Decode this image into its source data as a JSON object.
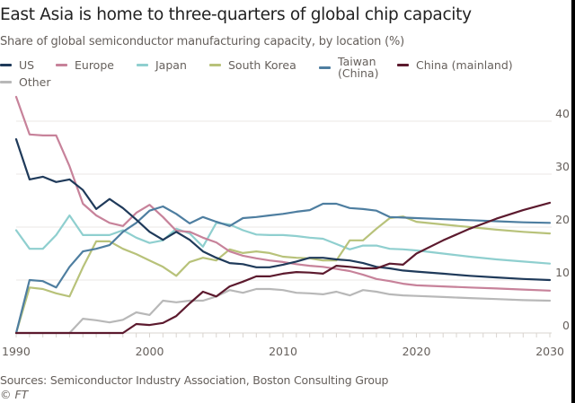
{
  "chart_data": {
    "type": "line",
    "title": "East Asia is home to three-quarters of global chip capacity",
    "subtitle": "Share of global semiconductor manufacturing capacity, by location (%)",
    "xlabel": "",
    "ylabel": "",
    "xlim": [
      1990,
      2030
    ],
    "ylim": [
      0,
      40
    ],
    "x_ticks": [
      1990,
      2000,
      2010,
      2020,
      2030
    ],
    "y_ticks": [
      0,
      10,
      20,
      30,
      40
    ],
    "y_axis_side": "right",
    "grid": "horizontal",
    "legend_position": "top",
    "x": [
      1990,
      1991,
      1992,
      1993,
      1994,
      1995,
      1996,
      1997,
      1998,
      1999,
      2000,
      2001,
      2002,
      2003,
      2004,
      2005,
      2006,
      2007,
      2008,
      2009,
      2010,
      2011,
      2012,
      2013,
      2014,
      2015,
      2016,
      2017,
      2018,
      2019,
      2020,
      2022,
      2024,
      2026,
      2028,
      2030
    ],
    "series": [
      {
        "name": "US",
        "color": "#1f3a5a",
        "values": [
          36.6,
          29.0,
          29.5,
          28.5,
          29.0,
          27.0,
          23.4,
          25.3,
          23.6,
          21.4,
          19.1,
          17.6,
          19.1,
          17.6,
          15.4,
          14.2,
          13.2,
          13.0,
          12.4,
          12.4,
          12.9,
          13.5,
          14.2,
          14.2,
          13.9,
          13.7,
          13.2,
          12.5,
          12.2,
          11.8,
          11.6,
          11.2,
          10.8,
          10.5,
          10.2,
          10.0
        ]
      },
      {
        "name": "Europe",
        "color": "#c7829a",
        "values": [
          44.6,
          37.5,
          37.3,
          37.3,
          31.5,
          24.4,
          22.2,
          20.8,
          20.2,
          22.7,
          24.2,
          21.9,
          19.3,
          19.1,
          18.0,
          17.1,
          15.4,
          14.6,
          14.1,
          13.7,
          13.4,
          13.0,
          12.7,
          12.5,
          12.1,
          11.7,
          11.0,
          10.2,
          9.8,
          9.3,
          9.0,
          8.8,
          8.6,
          8.4,
          8.2,
          8.0
        ]
      },
      {
        "name": "Japan",
        "color": "#8fcfcf",
        "values": [
          19.4,
          15.9,
          15.9,
          18.5,
          22.2,
          18.5,
          18.5,
          18.5,
          19.4,
          18.0,
          17.0,
          17.5,
          19.7,
          18.8,
          16.3,
          20.8,
          20.5,
          19.4,
          18.6,
          18.5,
          18.5,
          18.3,
          18.0,
          17.8,
          16.8,
          15.8,
          16.5,
          16.5,
          15.9,
          15.8,
          15.6,
          15.0,
          14.4,
          13.9,
          13.5,
          13.1
        ]
      },
      {
        "name": "South Korea",
        "color": "#b8c27a",
        "values": [
          0,
          8.6,
          8.3,
          7.5,
          6.9,
          12.4,
          17.3,
          17.3,
          15.9,
          14.9,
          13.7,
          12.5,
          10.8,
          13.4,
          14.2,
          13.7,
          15.8,
          15.1,
          15.4,
          15.1,
          14.4,
          14.2,
          14.1,
          13.7,
          13.7,
          17.5,
          17.5,
          19.7,
          21.7,
          22.0,
          21.0,
          20.5,
          20.0,
          19.5,
          19.1,
          18.8
        ]
      },
      {
        "name": "Taiwan (China)",
        "color": "#4e7ea0",
        "values": [
          0,
          10.0,
          9.8,
          8.6,
          12.5,
          15.4,
          15.9,
          16.6,
          19.1,
          20.8,
          23.1,
          23.9,
          22.5,
          20.7,
          21.9,
          21.0,
          20.2,
          21.7,
          21.9,
          22.2,
          22.5,
          22.9,
          23.2,
          24.4,
          24.4,
          23.6,
          23.4,
          23.1,
          21.9,
          21.8,
          21.7,
          21.5,
          21.3,
          21.1,
          20.9,
          20.8
        ]
      },
      {
        "name": "China (mainland)",
        "color": "#5c1a2e",
        "values": [
          0,
          0,
          0,
          0,
          0,
          0,
          0,
          0,
          0,
          1.7,
          1.5,
          1.9,
          3.2,
          5.6,
          7.8,
          6.9,
          8.8,
          9.7,
          10.7,
          10.7,
          11.2,
          11.5,
          11.4,
          11.2,
          12.7,
          12.5,
          12.2,
          12.2,
          13.1,
          12.9,
          15.0,
          17.5,
          19.7,
          21.6,
          23.2,
          24.6
        ]
      },
      {
        "name": "Other",
        "color": "#b8b8b8",
        "values": [
          0,
          0,
          0,
          0,
          0,
          2.7,
          2.4,
          2.0,
          2.5,
          3.9,
          3.4,
          6.1,
          5.8,
          6.1,
          6.1,
          6.9,
          8.1,
          7.6,
          8.3,
          8.3,
          8.1,
          7.6,
          7.5,
          7.3,
          7.8,
          7.1,
          8.1,
          7.8,
          7.3,
          7.1,
          7.0,
          6.8,
          6.6,
          6.4,
          6.2,
          6.1
        ]
      }
    ],
    "source": "Sources: Semiconductor Industry Association, Boston Consulting Group",
    "credit": "© FT"
  },
  "legend": [
    {
      "label": "US",
      "color": "#1f3a5a"
    },
    {
      "label": "Europe",
      "color": "#c7829a"
    },
    {
      "label": "Japan",
      "color": "#8fcfcf"
    },
    {
      "label": "South Korea",
      "color": "#b8c27a"
    },
    {
      "label_line1": "Taiwan",
      "label_line2": "(China)",
      "color": "#4e7ea0"
    },
    {
      "label": "China (mainland)",
      "color": "#5c1a2e"
    },
    {
      "label": "Other",
      "color": "#b8b8b8"
    }
  ]
}
